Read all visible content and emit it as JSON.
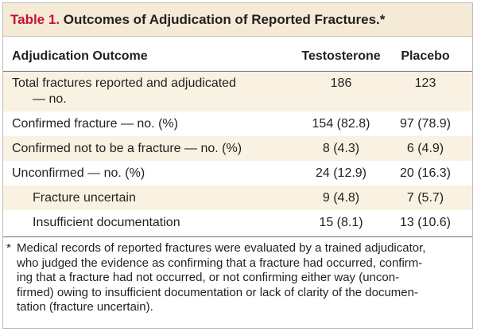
{
  "title": {
    "number": "Table 1.",
    "text": "Outcomes of Adjudication of Reported Fractures.*"
  },
  "columns": {
    "outcome": "Adjudication Outcome",
    "testosterone": "Testosterone",
    "placebo": "Placebo"
  },
  "rows": [
    {
      "label_line1": "Total fractures reported and adjudicated",
      "label_line2": "— no.",
      "testosterone": "186",
      "placebo": "123"
    },
    {
      "label": "Confirmed fracture — no. (%)",
      "testosterone": "154 (82.8)",
      "placebo": "97 (78.9)"
    },
    {
      "label": "Confirmed not to be a fracture — no. (%)",
      "testosterone": "8 (4.3)",
      "placebo": "6 (4.9)"
    },
    {
      "label": "Unconfirmed — no. (%)",
      "testosterone": "24 (12.9)",
      "placebo": "20 (16.3)"
    },
    {
      "label": "Fracture uncertain",
      "testosterone": "9 (4.8)",
      "placebo": "7 (5.7)"
    },
    {
      "label": "Insufficient documentation",
      "testosterone": "15 (8.1)",
      "placebo": "13 (10.6)"
    }
  ],
  "footnote": {
    "marker": "*",
    "line1": "Medical records of reported fractures were evaluated by a trained adjudicator,",
    "line2": "who judged the evidence as confirming that a fracture had occurred, confirm-",
    "line3": "ing that a fracture had not occurred, or not confirming either way (uncon-",
    "line4": "firmed) owing to insufficient documentation or lack of clarity of the documen-",
    "line5": "tation (fracture uncertain)."
  }
}
